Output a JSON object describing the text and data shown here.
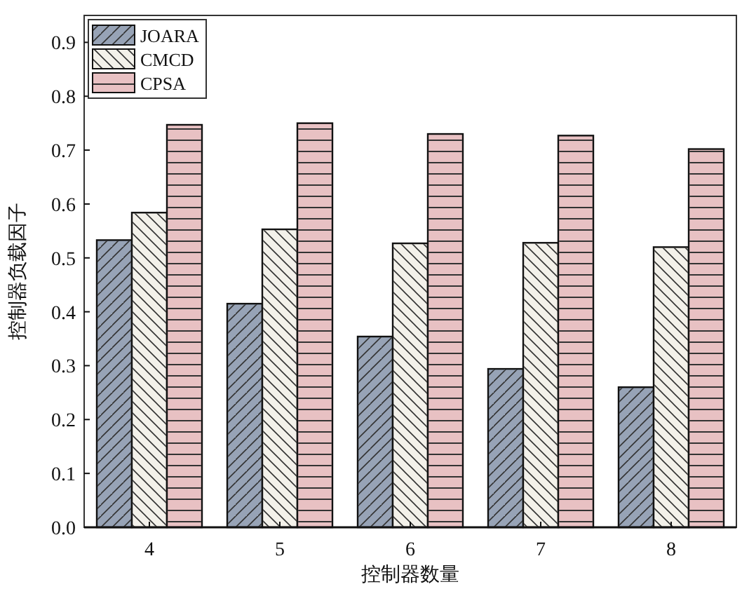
{
  "chart_data": {
    "type": "bar",
    "xlabel": "控制器数量",
    "ylabel": "控制器负载因子",
    "categories": [
      "4",
      "5",
      "6",
      "7",
      "8"
    ],
    "series": [
      {
        "name": "JOARA",
        "color": "#97a3b6",
        "values": [
          0.533,
          0.415,
          0.354,
          0.294,
          0.26
        ]
      },
      {
        "name": "CMCD",
        "color": "#f3f1ea",
        "values": [
          0.584,
          0.553,
          0.527,
          0.528,
          0.52
        ]
      },
      {
        "name": "CPSA",
        "color": "#e8c1c3",
        "values": [
          0.747,
          0.75,
          0.73,
          0.727,
          0.702
        ]
      }
    ],
    "ylim": [
      0,
      0.95
    ],
    "yticks": [
      {
        "value": 0,
        "label": "0.0"
      },
      0.1,
      0.2,
      0.3,
      0.4,
      0.5,
      0.6,
      0.7,
      0.8,
      0.9
    ],
    "legend": "top left",
    "grid": false
  }
}
